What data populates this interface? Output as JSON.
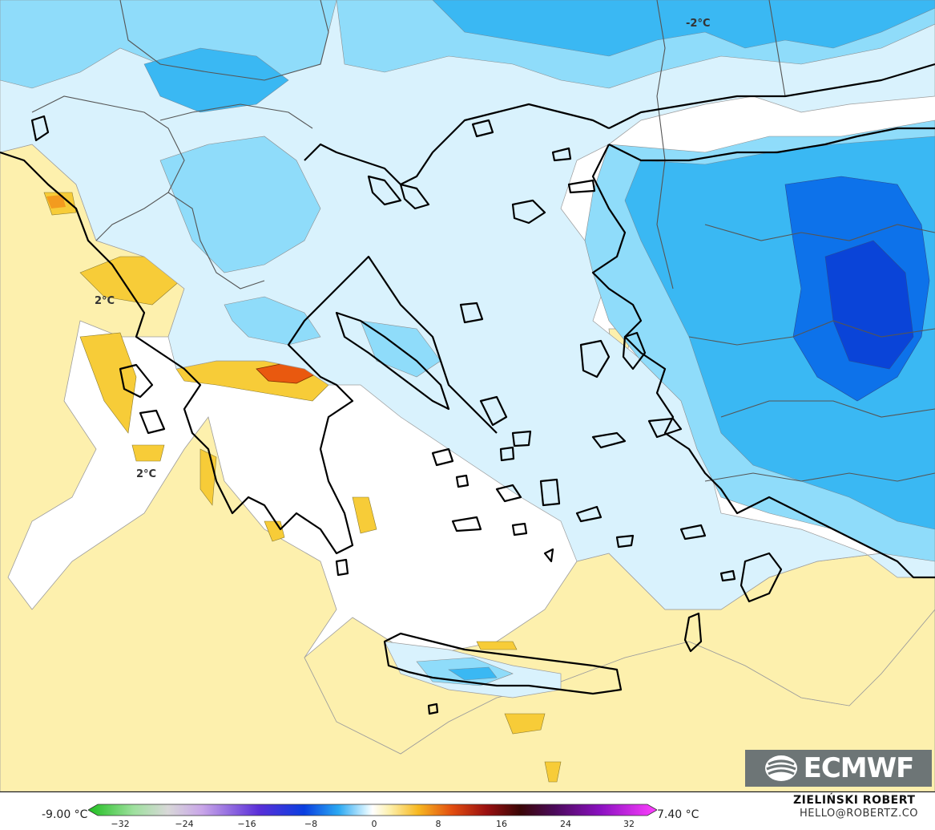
{
  "map": {
    "annotations": [
      "-2°C",
      "2°C",
      "2°C"
    ]
  },
  "logo": {
    "text": "ECMWF",
    "background": "#6d7576"
  },
  "legend": {
    "min_label": "-9.00 °C",
    "max_label": "7.40 °C",
    "ticks": [
      "−32",
      "−24",
      "−16",
      "−8",
      "0",
      "8",
      "16",
      "24",
      "32"
    ],
    "colors": {
      "cold_light": "#e6f7ff",
      "cold_mid": "#9fe4fb",
      "cold_strong": "#35b6f2",
      "cold_deep": "#0a6fe8",
      "warm_light": "#fdf0ad",
      "warm_mid": "#f7cc38",
      "warm_strong": "#e9590f",
      "coast": "#000000",
      "border": "#666666"
    }
  },
  "credit": {
    "name": "ZIELIŃSKI ROBERT",
    "email": "HELLO@ROBERTZ.CO"
  }
}
